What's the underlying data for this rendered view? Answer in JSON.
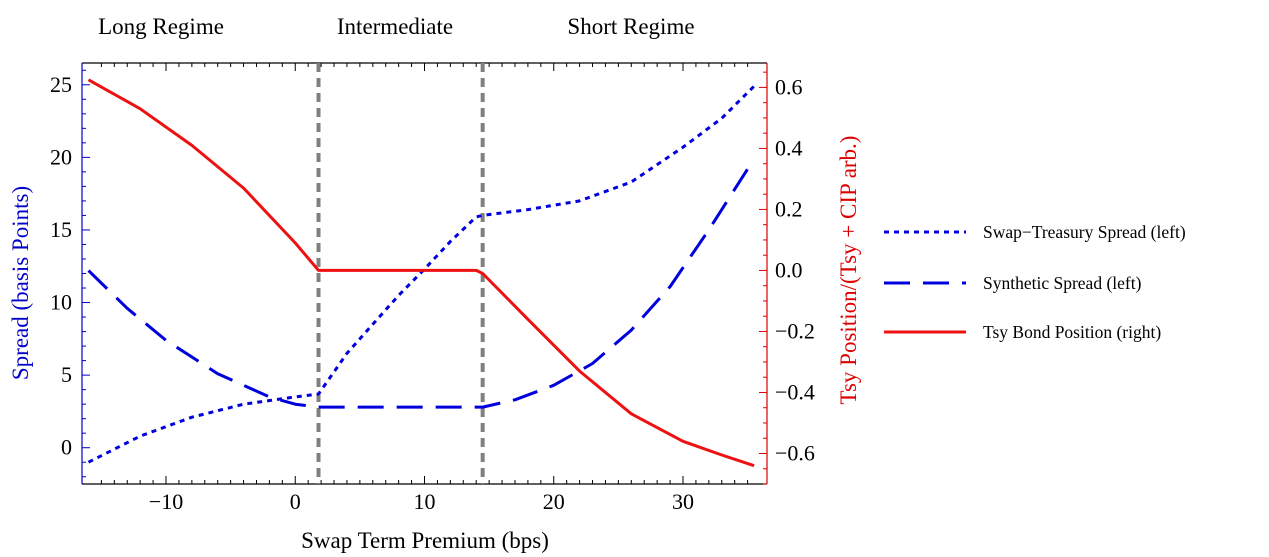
{
  "regime_labels": [
    "Long Regime",
    "Intermediate",
    "Short Regime"
  ],
  "colors": {
    "blue": "#0000dd",
    "red": "#ee1111",
    "grey": "#808080",
    "axis_left": "#0000cc",
    "axis_right": "#dd0000"
  },
  "chart_data": {
    "type": "line",
    "xlabel": "Swap Term Premium (bps)",
    "ylabel_left": "Spread (basis Points)",
    "ylabel_right": "Tsy Position/(Tsy + CIP arb.)",
    "xlim": [
      -16.5,
      36.5
    ],
    "ylim_left": [
      -2.5,
      26.5
    ],
    "ylim_right": [
      -0.7,
      0.68
    ],
    "x_ticks": [
      -10,
      0,
      10,
      20,
      30
    ],
    "x_tick_labels": [
      "−10",
      "0",
      "10",
      "20",
      "30"
    ],
    "y_left_ticks": [
      0,
      5,
      10,
      15,
      20,
      25
    ],
    "y_left_tick_labels": [
      "0",
      "5",
      "10",
      "15",
      "20",
      "25"
    ],
    "y_right_ticks": [
      -0.6,
      -0.4,
      -0.2,
      0.0,
      0.2,
      0.4,
      0.6
    ],
    "y_right_tick_labels": [
      "−0.6",
      "−0.4",
      "−0.2",
      "0.0",
      "0.2",
      "0.4",
      "0.6"
    ],
    "regime_boundaries": [
      1.8,
      14.5
    ],
    "legend_position": "right",
    "series": [
      {
        "name": "Swap−Treasury Spread (left)",
        "axis": "left",
        "style": "dotted",
        "color": "#0000dd",
        "x": [
          -16,
          -12,
          -8,
          -4,
          0,
          1.8,
          4,
          6,
          8,
          10,
          12,
          14,
          14.5,
          18,
          22,
          26,
          30,
          33,
          35.5
        ],
        "y": [
          -1,
          0.8,
          2.1,
          3.0,
          3.5,
          3.7,
          6.5,
          8.5,
          10.5,
          12.3,
          14.2,
          15.9,
          16.0,
          16.4,
          17.0,
          18.3,
          20.7,
          22.7,
          24.9
        ]
      },
      {
        "name": "Synthetic Spread (left)",
        "axis": "left",
        "style": "dashed",
        "color": "#0000dd",
        "x": [
          -16,
          -13,
          -10,
          -6,
          -2,
          0,
          1.8,
          6,
          10,
          14.5,
          17,
          20,
          23,
          26,
          29,
          32,
          35.5
        ],
        "y": [
          12.2,
          9.6,
          7.4,
          5.1,
          3.5,
          3.0,
          2.8,
          2.8,
          2.8,
          2.8,
          3.3,
          4.3,
          5.8,
          8.1,
          11.1,
          15.0,
          19.9
        ]
      },
      {
        "name": "Tsy Bond Position (right)",
        "axis": "right",
        "style": "solid",
        "color": "#ee1111",
        "x": [
          -16,
          -12,
          -8,
          -4,
          0,
          1.8,
          6,
          10,
          14,
          14.5,
          18,
          22,
          26,
          30,
          33,
          35.5
        ],
        "y": [
          0.625,
          0.53,
          0.41,
          0.27,
          0.09,
          0.0,
          0.0,
          0.0,
          0.0,
          -0.01,
          -0.16,
          -0.33,
          -0.47,
          -0.56,
          -0.605,
          -0.64
        ]
      }
    ]
  }
}
